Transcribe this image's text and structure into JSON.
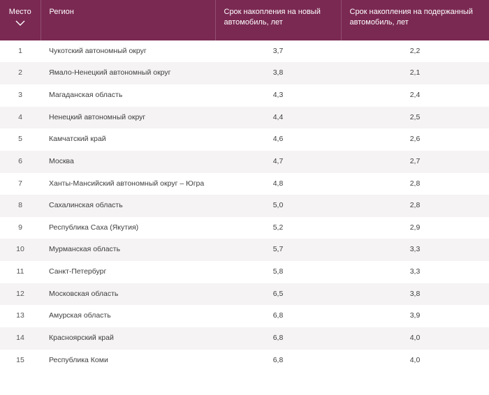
{
  "table": {
    "header_bg": "#7a2952",
    "header_fg": "#ffffff",
    "row_alt_bg": "#f5f3f4",
    "row_bg": "#ffffff",
    "text_color": "#3e3e3e",
    "columns": {
      "place": "Место",
      "region": "Регион",
      "new_car": "Срок накопления на новый автомобиль, лет",
      "used_car": "Срок накопления на подержанный автомобиль, лет"
    },
    "rows": [
      {
        "place": "1",
        "region": "Чукотский автономный округ",
        "new": "3,7",
        "used": "2,2"
      },
      {
        "place": "2",
        "region": "Ямало-Ненецкий автономный округ",
        "new": "3,8",
        "used": "2,1"
      },
      {
        "place": "3",
        "region": "Магаданская область",
        "new": "4,3",
        "used": "2,4"
      },
      {
        "place": "4",
        "region": "Ненецкий автономный округ",
        "new": "4,4",
        "used": "2,5"
      },
      {
        "place": "5",
        "region": "Камчатский край",
        "new": "4,6",
        "used": "2,6"
      },
      {
        "place": "6",
        "region": "Москва",
        "new": "4,7",
        "used": "2,7"
      },
      {
        "place": "7",
        "region": "Ханты-Мансийский автономный округ – Югра",
        "new": "4,8",
        "used": "2,8"
      },
      {
        "place": "8",
        "region": "Сахалинская область",
        "new": "5,0",
        "used": "2,8"
      },
      {
        "place": "9",
        "region": "Республика Саха (Якутия)",
        "new": "5,2",
        "used": "2,9"
      },
      {
        "place": "10",
        "region": "Мурманская область",
        "new": "5,7",
        "used": "3,3"
      },
      {
        "place": "11",
        "region": "Санкт-Петербург",
        "new": "5,8",
        "used": "3,3"
      },
      {
        "place": "12",
        "region": "Московская область",
        "new": "6,5",
        "used": "3,8"
      },
      {
        "place": "13",
        "region": "Амурская область",
        "new": "6,8",
        "used": "3,9"
      },
      {
        "place": "14",
        "region": "Красноярский край",
        "new": "6,8",
        "used": "4,0"
      },
      {
        "place": "15",
        "region": "Республика Коми",
        "new": "6,8",
        "used": "4,0"
      }
    ]
  }
}
